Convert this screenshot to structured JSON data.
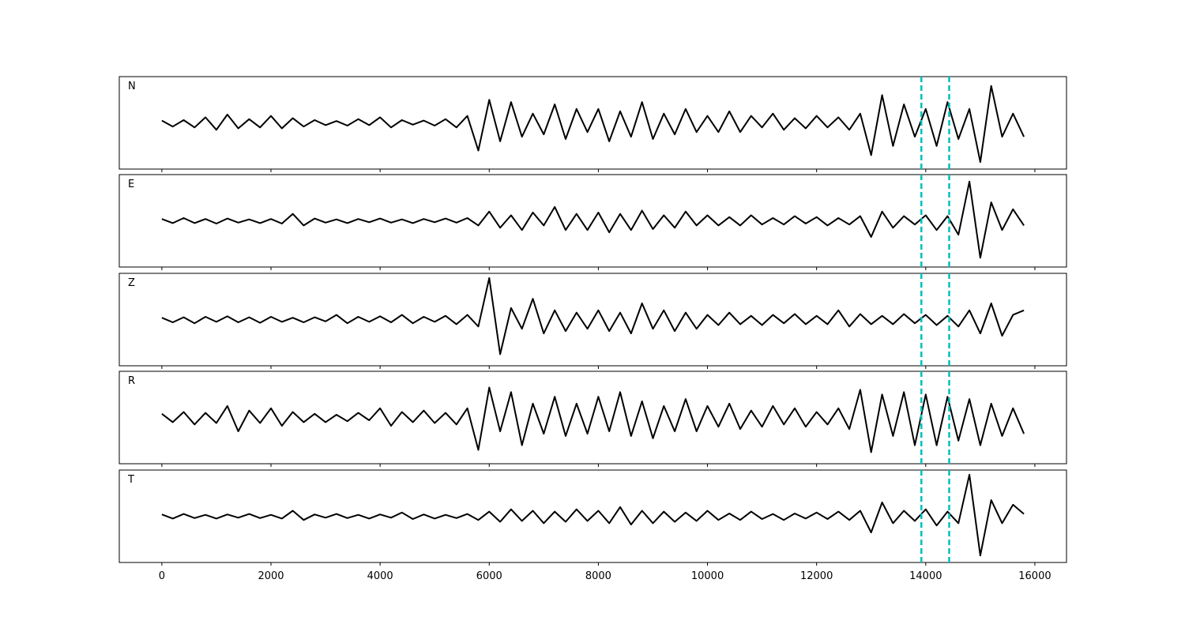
{
  "chart_data": {
    "type": "line",
    "x": [
      0,
      200,
      400,
      600,
      800,
      1000,
      1200,
      1400,
      1600,
      1800,
      2000,
      2200,
      2400,
      2600,
      2800,
      3000,
      3200,
      3400,
      3600,
      3800,
      4000,
      4200,
      4400,
      4600,
      4800,
      5000,
      5200,
      5400,
      5600,
      5800,
      6000,
      6200,
      6400,
      6600,
      6800,
      7000,
      7200,
      7400,
      7600,
      7800,
      8000,
      8200,
      8400,
      8600,
      8800,
      9000,
      9200,
      9400,
      9600,
      9800,
      10000,
      10200,
      10400,
      10600,
      10800,
      11000,
      11200,
      11400,
      11600,
      11800,
      12000,
      12200,
      12400,
      12600,
      12800,
      13000,
      13200,
      13400,
      13600,
      13800,
      14000,
      14200,
      14400,
      14600,
      14800,
      15000,
      15200,
      15400,
      15600,
      15800
    ],
    "xlim": [
      -780,
      16580
    ],
    "xticks": [
      0,
      2000,
      4000,
      6000,
      8000,
      10000,
      12000,
      14000,
      16000
    ],
    "ylim": [
      -1,
      1
    ],
    "vlines": [
      13920,
      14430
    ],
    "vline_color": "#00bfbf",
    "series": [
      {
        "name": "N",
        "color": "#000000",
        "values": [
          0.05,
          -0.08,
          0.06,
          -0.1,
          0.12,
          -0.15,
          0.18,
          -0.12,
          0.08,
          -0.1,
          0.15,
          -0.12,
          0.1,
          -0.08,
          0.06,
          -0.05,
          0.04,
          -0.06,
          0.08,
          -0.05,
          0.12,
          -0.1,
          0.06,
          -0.04,
          0.05,
          -0.06,
          0.08,
          -0.1,
          0.15,
          -0.6,
          0.5,
          -0.4,
          0.45,
          -0.3,
          0.2,
          -0.25,
          0.4,
          -0.35,
          0.3,
          -0.2,
          0.3,
          -0.4,
          0.25,
          -0.3,
          0.45,
          -0.35,
          0.2,
          -0.25,
          0.3,
          -0.2,
          0.15,
          -0.2,
          0.25,
          -0.2,
          0.15,
          -0.1,
          0.2,
          -0.15,
          0.1,
          -0.12,
          0.15,
          -0.1,
          0.12,
          -0.15,
          0.2,
          -0.7,
          0.6,
          -0.5,
          0.4,
          -0.3,
          0.3,
          -0.5,
          0.45,
          -0.35,
          0.3,
          -0.85,
          0.8,
          -0.3,
          0.2,
          -0.3
        ]
      },
      {
        "name": "E",
        "color": "#000000",
        "values": [
          0.04,
          -0.05,
          0.06,
          -0.05,
          0.04,
          -0.06,
          0.05,
          -0.04,
          0.03,
          -0.05,
          0.04,
          -0.06,
          0.15,
          -0.1,
          0.05,
          -0.04,
          0.03,
          -0.05,
          0.04,
          -0.03,
          0.05,
          -0.04,
          0.03,
          -0.05,
          0.04,
          -0.03,
          0.05,
          -0.04,
          0.06,
          -0.1,
          0.2,
          -0.15,
          0.12,
          -0.2,
          0.18,
          -0.1,
          0.3,
          -0.2,
          0.15,
          -0.2,
          0.18,
          -0.25,
          0.15,
          -0.2,
          0.22,
          -0.18,
          0.12,
          -0.15,
          0.2,
          -0.1,
          0.12,
          -0.1,
          0.08,
          -0.1,
          0.12,
          -0.08,
          0.06,
          -0.08,
          0.1,
          -0.06,
          0.08,
          -0.1,
          0.06,
          -0.08,
          0.1,
          -0.35,
          0.2,
          -0.15,
          0.1,
          -0.08,
          0.12,
          -0.2,
          0.1,
          -0.3,
          0.85,
          -0.8,
          0.4,
          -0.2,
          0.25,
          -0.1
        ]
      },
      {
        "name": "Z",
        "color": "#000000",
        "values": [
          0.04,
          -0.06,
          0.05,
          -0.08,
          0.06,
          -0.05,
          0.07,
          -0.06,
          0.05,
          -0.07,
          0.06,
          -0.05,
          0.04,
          -0.06,
          0.05,
          -0.04,
          0.1,
          -0.08,
          0.06,
          -0.05,
          0.07,
          -0.06,
          0.1,
          -0.08,
          0.06,
          -0.05,
          0.08,
          -0.1,
          0.1,
          -0.15,
          0.9,
          -0.75,
          0.25,
          -0.2,
          0.45,
          -0.3,
          0.2,
          -0.25,
          0.15,
          -0.2,
          0.2,
          -0.25,
          0.15,
          -0.3,
          0.35,
          -0.2,
          0.2,
          -0.25,
          0.15,
          -0.2,
          0.1,
          -0.12,
          0.15,
          -0.1,
          0.08,
          -0.12,
          0.1,
          -0.08,
          0.12,
          -0.1,
          0.08,
          -0.1,
          0.2,
          -0.15,
          0.12,
          -0.1,
          0.08,
          -0.1,
          0.12,
          -0.08,
          0.1,
          -0.12,
          0.08,
          -0.15,
          0.2,
          -0.3,
          0.35,
          -0.35,
          0.1,
          0.2
        ]
      },
      {
        "name": "R",
        "color": "#000000",
        "values": [
          0.08,
          -0.1,
          0.12,
          -0.15,
          0.1,
          -0.12,
          0.25,
          -0.3,
          0.15,
          -0.12,
          0.2,
          -0.18,
          0.12,
          -0.1,
          0.08,
          -0.1,
          0.06,
          -0.08,
          0.1,
          -0.06,
          0.2,
          -0.18,
          0.12,
          -0.1,
          0.15,
          -0.12,
          0.1,
          -0.15,
          0.2,
          -0.7,
          0.65,
          -0.3,
          0.55,
          -0.6,
          0.3,
          -0.35,
          0.45,
          -0.4,
          0.3,
          -0.35,
          0.45,
          -0.3,
          0.55,
          -0.4,
          0.35,
          -0.45,
          0.25,
          -0.3,
          0.4,
          -0.3,
          0.25,
          -0.2,
          0.3,
          -0.25,
          0.15,
          -0.2,
          0.25,
          -0.15,
          0.2,
          -0.2,
          0.12,
          -0.15,
          0.2,
          -0.25,
          0.6,
          -0.75,
          0.5,
          -0.4,
          0.55,
          -0.6,
          0.5,
          -0.6,
          0.45,
          -0.5,
          0.4,
          -0.6,
          0.3,
          -0.4,
          0.2,
          -0.35
        ]
      },
      {
        "name": "T",
        "color": "#000000",
        "values": [
          0.04,
          -0.05,
          0.05,
          -0.04,
          0.03,
          -0.05,
          0.04,
          -0.03,
          0.05,
          -0.04,
          0.03,
          -0.05,
          0.12,
          -0.08,
          0.04,
          -0.03,
          0.05,
          -0.04,
          0.03,
          -0.05,
          0.04,
          -0.03,
          0.08,
          -0.06,
          0.04,
          -0.05,
          0.03,
          -0.04,
          0.05,
          -0.08,
          0.1,
          -0.12,
          0.15,
          -0.1,
          0.12,
          -0.15,
          0.1,
          -0.12,
          0.15,
          -0.1,
          0.12,
          -0.15,
          0.2,
          -0.18,
          0.12,
          -0.15,
          0.1,
          -0.12,
          0.08,
          -0.1,
          0.12,
          -0.08,
          0.06,
          -0.08,
          0.1,
          -0.06,
          0.05,
          -0.08,
          0.06,
          -0.05,
          0.08,
          -0.06,
          0.1,
          -0.08,
          0.12,
          -0.35,
          0.3,
          -0.15,
          0.12,
          -0.1,
          0.15,
          -0.2,
          0.1,
          -0.15,
          0.9,
          -0.85,
          0.35,
          -0.15,
          0.25,
          0.05
        ]
      }
    ]
  }
}
